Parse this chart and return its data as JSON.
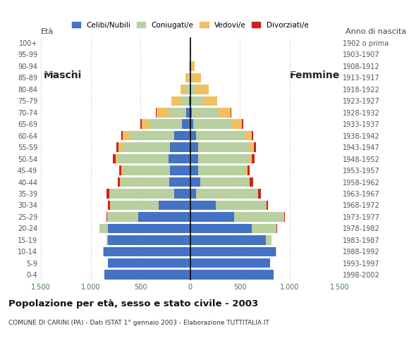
{
  "age_groups": [
    "0-4",
    "5-9",
    "10-14",
    "15-19",
    "20-24",
    "25-29",
    "30-34",
    "35-39",
    "40-44",
    "45-49",
    "50-54",
    "55-59",
    "60-64",
    "65-69",
    "70-74",
    "75-79",
    "80-84",
    "85-89",
    "90-94",
    "95-99",
    "100+"
  ],
  "birth_years": [
    "1998-2002",
    "1993-1997",
    "1988-1992",
    "1983-1987",
    "1978-1982",
    "1973-1977",
    "1968-1972",
    "1963-1967",
    "1958-1962",
    "1953-1957",
    "1948-1952",
    "1943-1947",
    "1938-1942",
    "1933-1937",
    "1928-1932",
    "1923-1927",
    "1918-1922",
    "1913-1917",
    "1908-1912",
    "1903-1907",
    "1902 o prima"
  ],
  "male": {
    "celibi": [
      860,
      830,
      870,
      830,
      830,
      520,
      320,
      160,
      210,
      200,
      220,
      200,
      160,
      80,
      40,
      10,
      5,
      0,
      0,
      0,
      0
    ],
    "coniugati": [
      0,
      0,
      5,
      10,
      80,
      310,
      480,
      650,
      490,
      480,
      510,
      480,
      450,
      320,
      180,
      80,
      35,
      15,
      5,
      0,
      0
    ],
    "vedovi": [
      0,
      0,
      0,
      0,
      0,
      5,
      5,
      5,
      5,
      10,
      20,
      40,
      70,
      90,
      120,
      100,
      55,
      30,
      10,
      5,
      0
    ],
    "divorziati": [
      0,
      0,
      0,
      0,
      5,
      5,
      20,
      25,
      25,
      25,
      25,
      20,
      15,
      10,
      5,
      0,
      0,
      0,
      0,
      0,
      0
    ]
  },
  "female": {
    "nubili": [
      840,
      800,
      860,
      760,
      620,
      440,
      260,
      60,
      100,
      80,
      80,
      80,
      60,
      30,
      15,
      10,
      5,
      0,
      0,
      0,
      0
    ],
    "coniugate": [
      0,
      5,
      10,
      60,
      250,
      500,
      500,
      620,
      490,
      480,
      510,
      510,
      490,
      390,
      270,
      130,
      50,
      20,
      5,
      0,
      0
    ],
    "vedove": [
      0,
      0,
      0,
      0,
      0,
      5,
      5,
      5,
      10,
      15,
      30,
      50,
      70,
      100,
      120,
      130,
      130,
      90,
      40,
      10,
      0
    ],
    "divorziate": [
      0,
      0,
      0,
      0,
      5,
      10,
      20,
      25,
      30,
      25,
      25,
      20,
      15,
      10,
      5,
      0,
      0,
      0,
      0,
      0,
      0
    ]
  },
  "colors": {
    "celibi": "#4472C4",
    "coniugati": "#b8cfa0",
    "vedovi": "#f0c060",
    "divorziati": "#cc2222"
  },
  "legend_labels": [
    "Celibi/Nubili",
    "Coniugati/e",
    "Vedovi/e",
    "Divorziati/e"
  ],
  "title": "Popolazione per età, sesso e stato civile - 2003",
  "subtitle": "COMUNE DI CARINI (PA) - Dati ISTAT 1° gennaio 2003 - Elaborazione TUTTITALIA.IT",
  "eta_label": "Età",
  "anno_label": "Anno di nascita",
  "maschi_label": "Maschi",
  "femmine_label": "Femmine",
  "xlim": 1500,
  "xtick_vals": [
    -1500,
    -1000,
    -500,
    0,
    500,
    1000,
    1500
  ],
  "xtick_labels": [
    "1.500",
    "1.000",
    "500",
    "0",
    "500",
    "1.000",
    "1.500"
  ],
  "background_color": "#ffffff",
  "grid_color": "#bbbbbb"
}
